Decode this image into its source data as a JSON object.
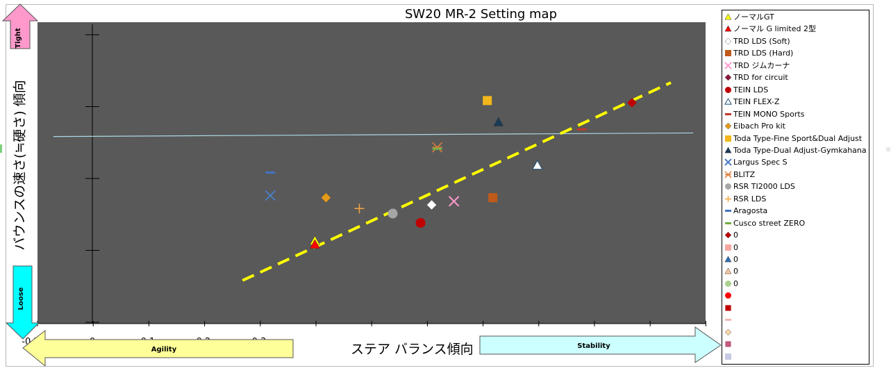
{
  "chart_data": {
    "type": "scatter",
    "title": "SW20 MR-2 Setting map",
    "xlabel": "ステア バランス傾向",
    "ylabel": "バウンスの速さ(≒硬さ) 傾向",
    "xlim": [
      -0.2,
      1.1
    ],
    "ylim": [
      -0.1,
      4.1
    ],
    "x_ticks": [
      "-0.2",
      "0",
      "0.1",
      "0.2",
      "0.3"
    ],
    "grid": false,
    "legend_position": "right",
    "plot_background": "#595959",
    "arrows": {
      "top": "Tight",
      "bottom": "Loose",
      "left": "Agility",
      "right": "Stability"
    },
    "lines": [
      {
        "style": "horizontal",
        "color": "#add8e6",
        "x": [
          -0.07,
          1.08
        ],
        "y": [
          2.5,
          2.55
        ]
      },
      {
        "style": "dashed",
        "color": "#ffff00",
        "x": [
          0.27,
          1.04
        ],
        "y": [
          0.5,
          3.25
        ]
      }
    ],
    "series": [
      {
        "name": "ノーマルGT",
        "marker": "triangle",
        "color": "#ffff00",
        "x": 0.4,
        "y": 1.05
      },
      {
        "name": "ノーマル G limited  2型",
        "marker": "triangle",
        "color": "#ff0000",
        "x": 0.4,
        "y": 1.0
      },
      {
        "name": "TRD LDS (Soft)",
        "marker": "diamond",
        "color": "#ffffff",
        "x": 0.61,
        "y": 1.55
      },
      {
        "name": "TRD LDS (Hard)",
        "marker": "square",
        "color": "#c05a1a",
        "x": 0.72,
        "y": 1.65
      },
      {
        "name": "TRD ジムカーナ",
        "marker": "x",
        "color": "#ff99cc",
        "x": 0.65,
        "y": 1.6
      },
      {
        "name": "TRD for circuit",
        "marker": "diamond",
        "color": "#8b1a3a",
        "x": null,
        "y": null
      },
      {
        "name": "TEIN LDS",
        "marker": "circle",
        "color": "#c00000",
        "x": 0.59,
        "y": 1.3
      },
      {
        "name": "TEIN FLEX-Z",
        "marker": "triangle-open",
        "color": "#ffffff",
        "x": 0.8,
        "y": 2.1
      },
      {
        "name": "TEIN MONO Sports",
        "marker": "dash",
        "color": "#c0392b",
        "x": 0.88,
        "y": 2.6
      },
      {
        "name": "Eibach Pro kit",
        "marker": "diamond",
        "color": "#e59b16",
        "x": 0.42,
        "y": 1.65
      },
      {
        "name": "Toda  Type-Fine Sport&Dual Adjust",
        "marker": "square",
        "color": "#f2b71c",
        "x": 0.71,
        "y": 3.0
      },
      {
        "name": "Toda  Type-Dual Adjust-Gymkahana",
        "marker": "triangle",
        "color": "#1b3a57",
        "x": 0.73,
        "y": 2.7
      },
      {
        "name": "Largus Spec S",
        "marker": "x",
        "color": "#4a7cc4",
        "x": 0.32,
        "y": 1.68
      },
      {
        "name": "BLITZ",
        "marker": "asterisk",
        "color": "#e07b39",
        "x": 0.62,
        "y": 2.35
      },
      {
        "name": "RSR TI2000 LDS",
        "marker": "circle",
        "color": "#a6a6a6",
        "x": 0.54,
        "y": 1.43
      },
      {
        "name": "RSR LDS",
        "marker": "plus",
        "color": "#f2a541",
        "x": 0.48,
        "y": 1.5
      },
      {
        "name": "Aragosta",
        "marker": "dash",
        "color": "#4472c4",
        "x": 0.32,
        "y": 2.0
      },
      {
        "name": "Cusco street ZERO",
        "marker": "dash",
        "color": "#70ad47",
        "x": 0.62,
        "y": 2.33
      },
      {
        "name": "0",
        "marker": "diamond",
        "color": "#c00000",
        "x": 0.97,
        "y": 2.97
      },
      {
        "name": "0",
        "marker": "square",
        "color": "#f4a7a0",
        "x": null,
        "y": null
      },
      {
        "name": "0",
        "marker": "triangle",
        "color": "#2e6fb7",
        "x": null,
        "y": null
      },
      {
        "name": "0",
        "marker": "triangle",
        "color": "#f9c89b",
        "x": null,
        "y": null
      },
      {
        "name": "0",
        "marker": "circle",
        "color": "#a9d18e",
        "x": null,
        "y": null
      },
      {
        "name": "",
        "marker": "circle",
        "color": "#ff0000",
        "x": null,
        "y": null
      },
      {
        "name": "",
        "marker": "grid",
        "color": "#c00000",
        "x": null,
        "y": null
      },
      {
        "name": "",
        "marker": "dash",
        "color": "#f4b6b6",
        "x": null,
        "y": null
      },
      {
        "name": "",
        "marker": "diamond",
        "color": "#f9d7a8",
        "x": null,
        "y": null
      },
      {
        "name": "",
        "marker": "xsquare",
        "color": "#c05a7a",
        "x": null,
        "y": null
      },
      {
        "name": "",
        "marker": "square",
        "color": "#c5cbe3",
        "x": null,
        "y": null
      }
    ]
  }
}
